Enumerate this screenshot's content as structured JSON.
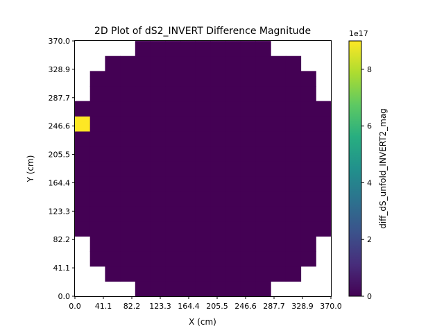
{
  "chart_data": {
    "type": "heatmap",
    "title": "2D Plot of dS2_INVERT Difference Magnitude",
    "xlabel": "X (cm)",
    "ylabel": "Y (cm)",
    "colorbar_label": "diff_dS_unfold_INVERT2_mag",
    "colorbar_scale_label": "1e17",
    "colormap": "viridis",
    "xlim": [
      0,
      370
    ],
    "ylim": [
      0,
      370
    ],
    "x_ticks": [
      "0.0",
      "41.1",
      "82.2",
      "123.3",
      "164.4",
      "205.5",
      "246.6",
      "287.7",
      "328.9",
      "370.0"
    ],
    "y_ticks": [
      "0.0",
      "41.1",
      "82.2",
      "123.3",
      "164.4",
      "205.5",
      "246.6",
      "287.7",
      "328.9",
      "370.0"
    ],
    "colorbar_ticks": [
      "0",
      "2",
      "4",
      "6",
      "8"
    ],
    "color_range": [
      0,
      9
    ],
    "grid_size": 17,
    "cell_size_cm": 21.76,
    "row_column_ranges": [
      [
        4,
        12
      ],
      [
        2,
        14
      ],
      [
        1,
        15
      ],
      [
        1,
        15
      ],
      [
        0,
        16
      ],
      [
        0,
        16
      ],
      [
        0,
        16
      ],
      [
        0,
        16
      ],
      [
        0,
        16
      ],
      [
        0,
        16
      ],
      [
        0,
        16
      ],
      [
        0,
        16
      ],
      [
        0,
        16
      ],
      [
        1,
        15
      ],
      [
        1,
        15
      ],
      [
        2,
        14
      ],
      [
        4,
        12
      ]
    ],
    "background_value": 0,
    "highlight_cells": [
      {
        "row": 11,
        "col": 0,
        "value": 9
      }
    ]
  }
}
